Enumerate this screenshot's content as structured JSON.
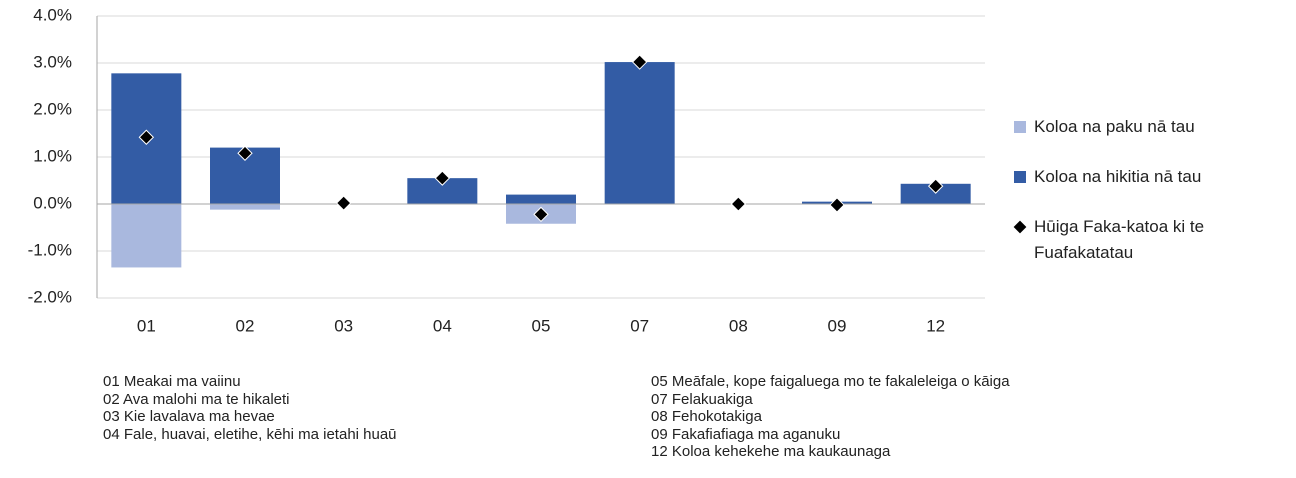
{
  "chart_data": {
    "type": "bar",
    "categories": [
      "01",
      "02",
      "03",
      "04",
      "05",
      "07",
      "08",
      "09",
      "12"
    ],
    "series": [
      {
        "name": "Koloa na paku nā tau",
        "color": "#a9b8de",
        "type": "bar",
        "values": [
          -1.35,
          -0.12,
          0,
          0,
          -0.42,
          0,
          0,
          0,
          0
        ]
      },
      {
        "name": "Koloa na hikitia nā tau",
        "color": "#335ca5",
        "type": "bar",
        "values": [
          2.78,
          1.2,
          0,
          0.55,
          0.2,
          3.02,
          0,
          0.05,
          0.43
        ]
      },
      {
        "name": "Hūiga Faka-katoa ki te Fuafakatatau",
        "color": "#000000",
        "type": "scatter",
        "values": [
          1.42,
          1.08,
          0.02,
          0.55,
          -0.22,
          3.02,
          0.0,
          -0.02,
          0.38
        ]
      }
    ],
    "ylim": [
      -2,
      4
    ],
    "yticks": [
      {
        "value": -2,
        "label": "-2.0%"
      },
      {
        "value": -1,
        "label": "-1.0%"
      },
      {
        "value": 0,
        "label": "0.0%"
      },
      {
        "value": 1,
        "label": "1.0%"
      },
      {
        "value": 2,
        "label": "2.0%"
      },
      {
        "value": 3,
        "label": "3.0%"
      },
      {
        "value": 4,
        "label": "4.0%"
      }
    ],
    "grid": true,
    "legend": "right"
  },
  "notes": {
    "left": [
      "01 Meakai ma vaiinu",
      "02 Ava malohi ma te hikaleti",
      "03 Kie lavalava  ma hevae",
      "04 Fale, huavai, eletihe, kēhi ma ietahi huaū"
    ],
    "right": [
      "05 Meāfale, kope faigaluega mo te fakaleleiga  o kāiga",
      "07 Felakuakiga",
      "08 Fehokotakiga",
      "09 Fakafiafiaga ma aganuku",
      "12 Koloa kehekehe ma kaukaunaga"
    ]
  }
}
